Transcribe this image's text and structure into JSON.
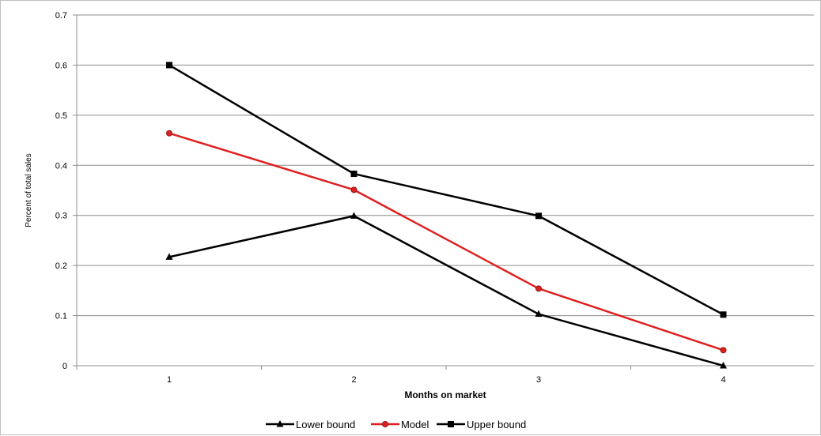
{
  "chart_data": {
    "type": "line",
    "x": [
      1,
      2,
      3,
      4
    ],
    "xlabel": "Months on market",
    "ylabel": "Percent of total sales",
    "ylim": [
      0,
      0.7
    ],
    "yticks": [
      "0",
      "0.1",
      "0.2",
      "0.3",
      "0.4",
      "0.5",
      "0.6",
      "0.7"
    ],
    "xticks": [
      "1",
      "2",
      "3",
      "4"
    ],
    "grid": true,
    "legend_position": "bottom",
    "series": [
      {
        "name": "Lower bound",
        "values": [
          0.217,
          0.299,
          0.103,
          0.0
        ],
        "color": "#000000",
        "marker": "triangle"
      },
      {
        "name": "Model",
        "values": [
          0.464,
          0.351,
          0.154,
          0.031
        ],
        "color": "#e02020",
        "marker": "circle"
      },
      {
        "name": "Upper bound",
        "values": [
          0.6,
          0.383,
          0.299,
          0.102
        ],
        "color": "#000000",
        "marker": "square"
      }
    ]
  }
}
